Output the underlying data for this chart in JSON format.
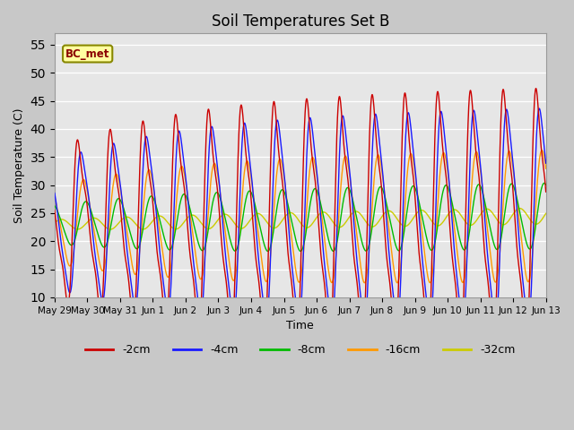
{
  "title": "Soil Temperatures Set B",
  "xlabel": "Time",
  "ylabel": "Soil Temperature (C)",
  "ylim": [
    10,
    57
  ],
  "yticks": [
    10,
    15,
    20,
    25,
    30,
    35,
    40,
    45,
    50,
    55
  ],
  "annotation": "BC_met",
  "colors": {
    "-2cm": "#cc0000",
    "-4cm": "#1a1aff",
    "-8cm": "#00bb00",
    "-16cm": "#ff9900",
    "-32cm": "#cccc00"
  },
  "tick_labels": [
    "May 29",
    "May 30",
    "May 31",
    "Jun 1",
    "Jun 2",
    "Jun 3",
    "Jun 4",
    "Jun 5",
    "Jun 6",
    "Jun 7",
    "Jun 8",
    "Jun 9",
    "Jun 10",
    "Jun 11",
    "Jun 12",
    "Jun 13"
  ],
  "n_days": 15,
  "figwidth": 6.4,
  "figheight": 4.8,
  "dpi": 100
}
